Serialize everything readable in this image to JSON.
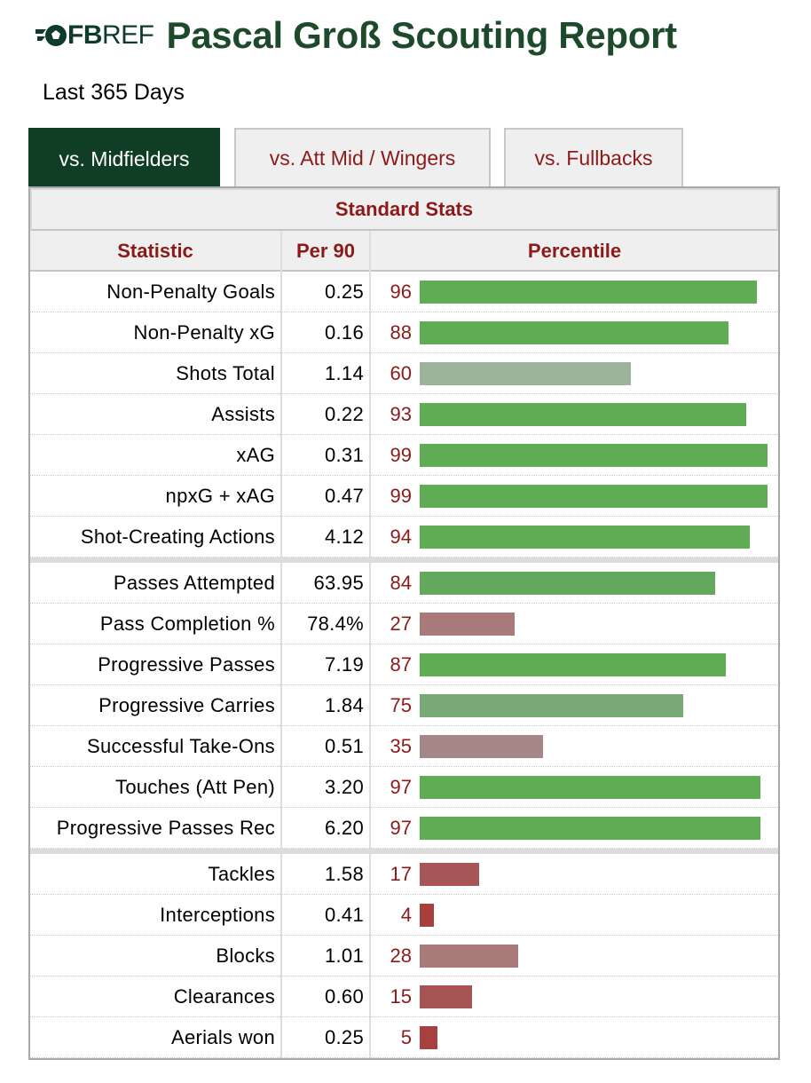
{
  "header": {
    "logo_fb": "FB",
    "logo_ref": "REF",
    "title": "Pascal Groß Scouting Report",
    "subtitle": "Last 365 Days"
  },
  "tabs": [
    {
      "label": "vs. Midfielders",
      "active": true
    },
    {
      "label": "vs. Att Mid / Wingers",
      "active": false
    },
    {
      "label": "vs. Fullbacks",
      "active": false
    }
  ],
  "table": {
    "caption": "Standard Stats",
    "columns": [
      "Statistic",
      "Per 90",
      "Percentile"
    ],
    "groups": [
      [
        {
          "stat": "Non-Penalty Goals",
          "per90": "0.25",
          "percentile": 96,
          "color": "#5fac55"
        },
        {
          "stat": "Non-Penalty xG",
          "per90": "0.16",
          "percentile": 88,
          "color": "#5fac55"
        },
        {
          "stat": "Shots Total",
          "per90": "1.14",
          "percentile": 60,
          "color": "#9cb49b"
        },
        {
          "stat": "Assists",
          "per90": "0.22",
          "percentile": 93,
          "color": "#5fac55"
        },
        {
          "stat": "xAG",
          "per90": "0.31",
          "percentile": 99,
          "color": "#5fac55"
        },
        {
          "stat": "npxG + xAG",
          "per90": "0.47",
          "percentile": 99,
          "color": "#5fac55"
        },
        {
          "stat": "Shot-Creating Actions",
          "per90": "4.12",
          "percentile": 94,
          "color": "#5fac55"
        }
      ],
      [
        {
          "stat": "Passes Attempted",
          "per90": "63.95",
          "percentile": 84,
          "color": "#63a85d"
        },
        {
          "stat": "Pass Completion %",
          "per90": "78.4%",
          "percentile": 27,
          "color": "#a87a7a"
        },
        {
          "stat": "Progressive Passes",
          "per90": "7.19",
          "percentile": 87,
          "color": "#5fac55"
        },
        {
          "stat": "Progressive Carries",
          "per90": "1.84",
          "percentile": 75,
          "color": "#7aa978"
        },
        {
          "stat": "Successful Take-Ons",
          "per90": "0.51",
          "percentile": 35,
          "color": "#a58787"
        },
        {
          "stat": "Touches (Att Pen)",
          "per90": "3.20",
          "percentile": 97,
          "color": "#5fac55"
        },
        {
          "stat": "Progressive Passes Rec",
          "per90": "6.20",
          "percentile": 97,
          "color": "#5fac55"
        }
      ],
      [
        {
          "stat": "Tackles",
          "per90": "1.58",
          "percentile": 17,
          "color": "#a65656"
        },
        {
          "stat": "Interceptions",
          "per90": "0.41",
          "percentile": 4,
          "color": "#a83e3e"
        },
        {
          "stat": "Blocks",
          "per90": "1.01",
          "percentile": 28,
          "color": "#a87a7a"
        },
        {
          "stat": "Clearances",
          "per90": "0.60",
          "percentile": 15,
          "color": "#a65353"
        },
        {
          "stat": "Aerials won",
          "per90": "0.25",
          "percentile": 5,
          "color": "#a84040"
        }
      ]
    ]
  }
}
